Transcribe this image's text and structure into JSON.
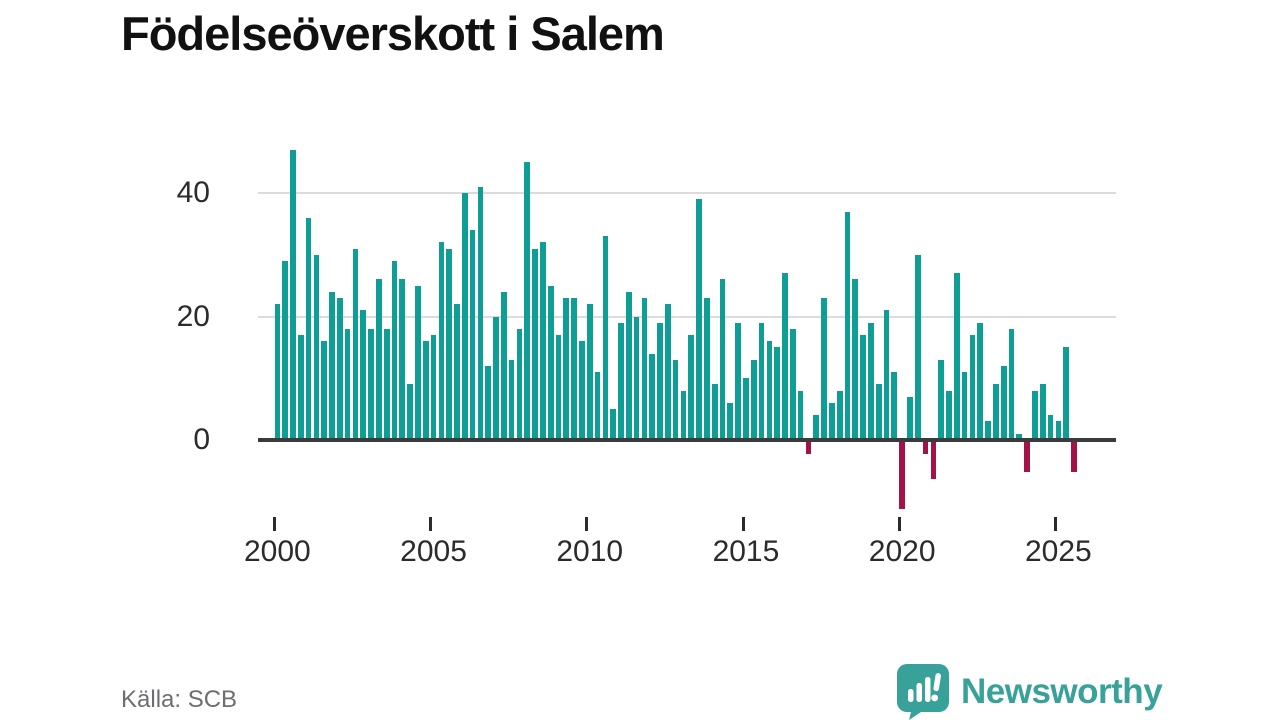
{
  "title": "Födelseöverskott i Salem",
  "source": "Källa: SCB",
  "branding": {
    "name": "Newsworthy",
    "logo_icon": "bar-chart-speech-bubble"
  },
  "colors": {
    "positive_bar": "#0e9e96",
    "negative_bar": "#a41347",
    "gridline": "#dcdcdc",
    "axis_line": "#3b3b3b",
    "axis_text": "#2b2b2b",
    "title_text": "#111111",
    "source_text": "#6d6d72",
    "brand_teal": "#38a199",
    "background": "#ffffff"
  },
  "chart_data": {
    "type": "bar",
    "title": "Födelseöverskott i Salem",
    "xlabel": "",
    "ylabel": "",
    "grid": "horizontal",
    "legend": "none",
    "ylim": [
      -12,
      48
    ],
    "y_ticks": [
      0,
      20,
      40
    ],
    "x_ticks": [
      "2000",
      "2005",
      "2010",
      "2015",
      "2020",
      "2025"
    ],
    "bar_color": "#0e9e96",
    "negative_bar_color": "#a41347",
    "quarters": [
      "2000 Q1",
      "2000 Q2",
      "2000 Q3",
      "2000 Q4",
      "2001 Q1",
      "2001 Q2",
      "2001 Q3",
      "2001 Q4",
      "2002 Q1",
      "2002 Q2",
      "2002 Q3",
      "2002 Q4",
      "2003 Q1",
      "2003 Q2",
      "2003 Q3",
      "2003 Q4",
      "2004 Q1",
      "2004 Q2",
      "2004 Q3",
      "2004 Q4",
      "2005 Q1",
      "2005 Q2",
      "2005 Q3",
      "2005 Q4",
      "2006 Q1",
      "2006 Q2",
      "2006 Q3",
      "2006 Q4",
      "2007 Q1",
      "2007 Q2",
      "2007 Q3",
      "2007 Q4",
      "2008 Q1",
      "2008 Q2",
      "2008 Q3",
      "2008 Q4",
      "2009 Q1",
      "2009 Q2",
      "2009 Q3",
      "2009 Q4",
      "2010 Q1",
      "2010 Q2",
      "2010 Q3",
      "2010 Q4",
      "2011 Q1",
      "2011 Q2",
      "2011 Q3",
      "2011 Q4",
      "2012 Q1",
      "2012 Q2",
      "2012 Q3",
      "2012 Q4",
      "2013 Q1",
      "2013 Q2",
      "2013 Q3",
      "2013 Q4",
      "2014 Q1",
      "2014 Q2",
      "2014 Q3",
      "2014 Q4",
      "2015 Q1",
      "2015 Q2",
      "2015 Q3",
      "2015 Q4",
      "2016 Q1",
      "2016 Q2",
      "2016 Q3",
      "2016 Q4",
      "2017 Q1",
      "2017 Q2",
      "2017 Q3",
      "2017 Q4",
      "2018 Q1",
      "2018 Q2",
      "2018 Q3",
      "2018 Q4",
      "2019 Q1",
      "2019 Q2",
      "2019 Q3",
      "2019 Q4",
      "2020 Q1",
      "2020 Q2",
      "2020 Q3",
      "2020 Q4",
      "2021 Q1",
      "2021 Q2",
      "2021 Q3",
      "2021 Q4",
      "2022 Q1",
      "2022 Q2",
      "2022 Q3",
      "2022 Q4",
      "2023 Q1",
      "2023 Q2",
      "2023 Q3",
      "2023 Q4",
      "2024 Q1",
      "2024 Q2",
      "2024 Q3",
      "2024 Q4",
      "2025 Q1",
      "2025 Q2",
      "2025 Q3"
    ],
    "values": [
      22,
      29,
      47,
      17,
      36,
      30,
      16,
      24,
      23,
      18,
      31,
      21,
      18,
      26,
      18,
      29,
      26,
      9,
      25,
      16,
      17,
      32,
      31,
      22,
      40,
      34,
      41,
      12,
      20,
      24,
      13,
      18,
      45,
      31,
      32,
      25,
      17,
      23,
      23,
      16,
      22,
      11,
      33,
      5,
      19,
      24,
      20,
      23,
      14,
      19,
      22,
      13,
      8,
      17,
      39,
      23,
      9,
      26,
      6,
      19,
      10,
      13,
      19,
      16,
      15,
      27,
      18,
      8,
      -2,
      4,
      23,
      6,
      8,
      37,
      26,
      17,
      19,
      9,
      21,
      11,
      -11,
      7,
      30,
      -2,
      -6,
      13,
      8,
      27,
      11,
      17,
      19,
      3,
      9,
      12,
      18,
      1,
      -5,
      8,
      9,
      4,
      3,
      15,
      -5
    ]
  }
}
